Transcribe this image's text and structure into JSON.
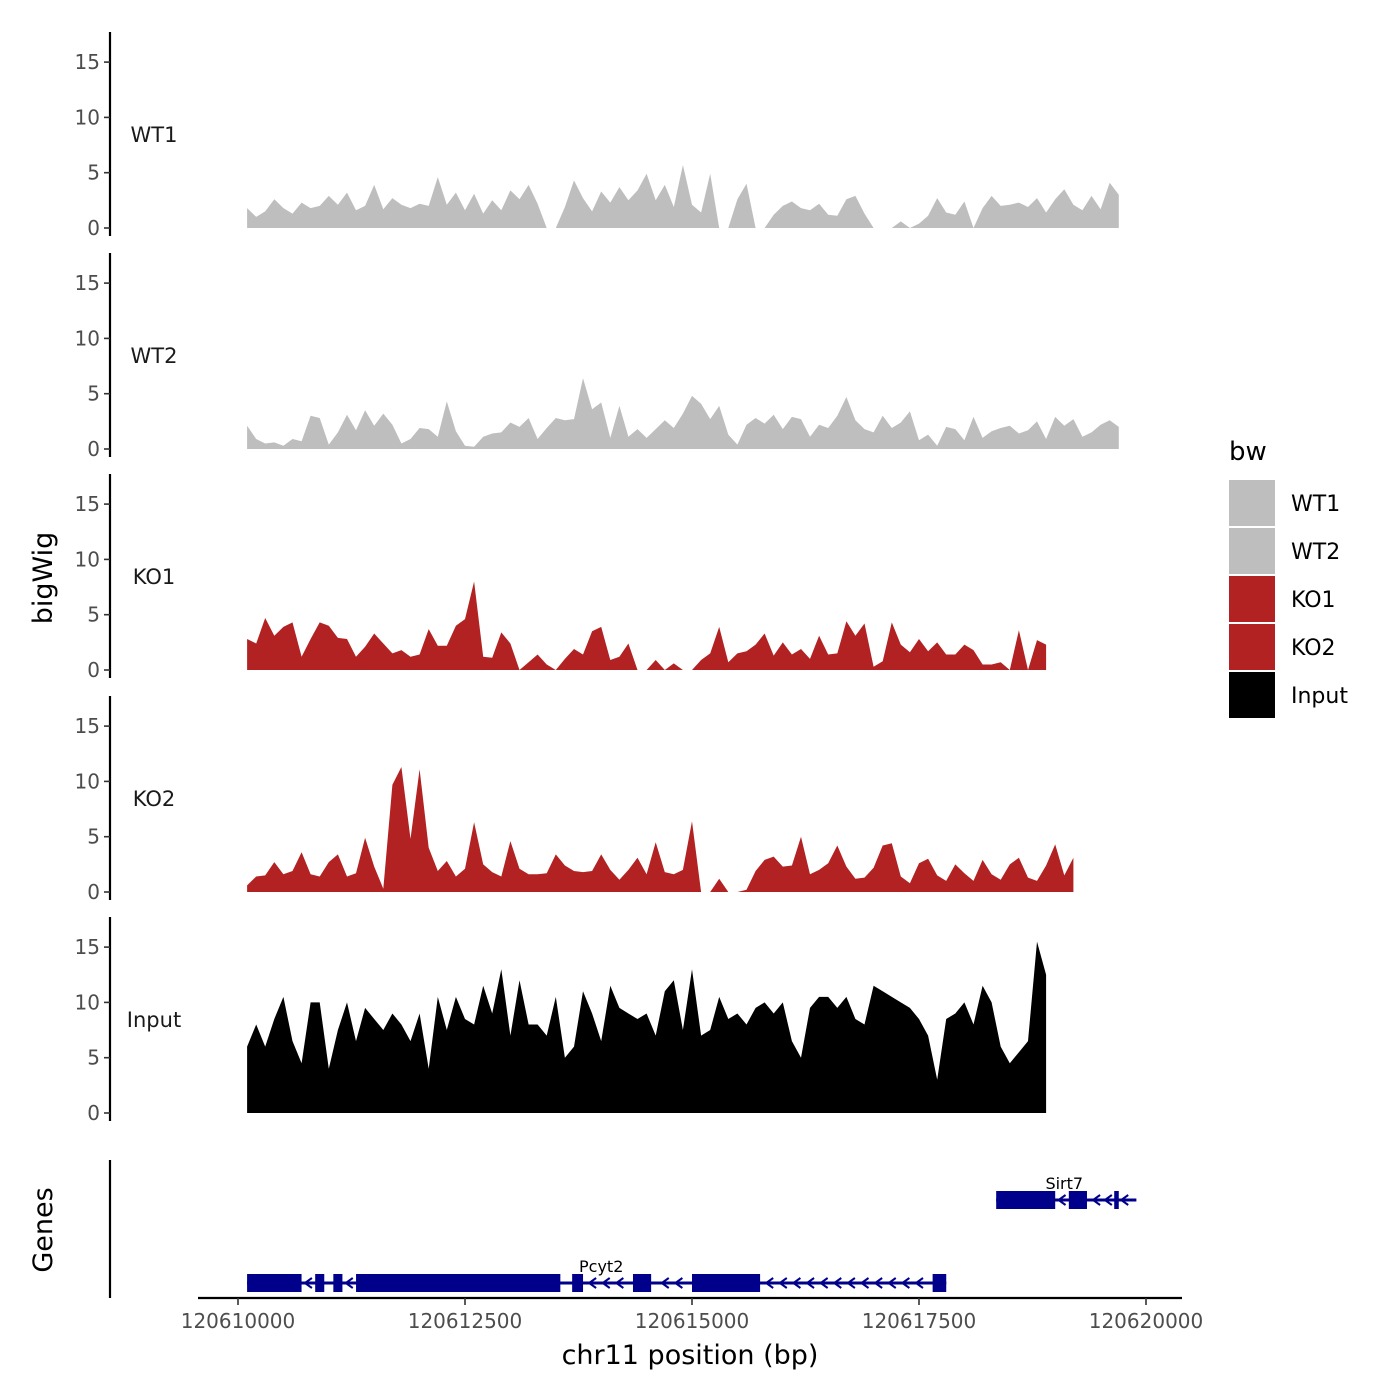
{
  "chart_data": {
    "type": "area",
    "title": "",
    "xlabel": "chr11 position (bp)",
    "ylabel": "bigWig",
    "genes_label": "Genes",
    "xlim": [
      120609600,
      120620800
    ],
    "ylim": [
      0,
      18
    ],
    "x_ticks": [
      {
        "value": 120610000,
        "label": "120610000"
      },
      {
        "value": 120612500,
        "label": "120612500"
      },
      {
        "value": 120615000,
        "label": "120615000"
      },
      {
        "value": 120617500,
        "label": "120617500"
      },
      {
        "value": 120620000,
        "label": "120620000"
      }
    ],
    "y_ticks": [
      {
        "value": 0,
        "label": "0"
      },
      {
        "value": 5,
        "label": "5"
      },
      {
        "value": 10,
        "label": "10"
      },
      {
        "value": 15,
        "label": "15"
      }
    ],
    "x_start": 120610100,
    "x_step": 100,
    "legend": {
      "title": "bw",
      "entries": [
        {
          "label": "WT1",
          "color": "#bebebe"
        },
        {
          "label": "WT2",
          "color": "#bebebe"
        },
        {
          "label": "KO1",
          "color": "#b22222"
        },
        {
          "label": "KO2",
          "color": "#b22222"
        },
        {
          "label": "Input",
          "color": "#000000"
        }
      ]
    },
    "series": [
      {
        "name": "WT1",
        "color": "#bebebe",
        "values": [
          1.8,
          1.0,
          1.5,
          2.6,
          1.8,
          1.3,
          2.3,
          1.8,
          2.0,
          2.9,
          2.1,
          3.2,
          1.6,
          2.0,
          3.9,
          1.7,
          2.7,
          2.1,
          1.8,
          2.2,
          2.0,
          4.6,
          2.1,
          3.2,
          1.6,
          3.1,
          1.3,
          2.5,
          1.6,
          3.4,
          2.6,
          3.9,
          2.2,
          0.0,
          0.0,
          1.9,
          4.3,
          2.7,
          1.5,
          3.3,
          2.3,
          3.7,
          2.5,
          3.4,
          4.9,
          2.5,
          3.9,
          1.9,
          5.7,
          2.1,
          1.4,
          4.9,
          0.0,
          0.0,
          2.6,
          4.0,
          0.0,
          0.0,
          1.2,
          2.0,
          2.4,
          1.8,
          1.6,
          2.2,
          1.2,
          1.1,
          2.6,
          2.9,
          1.3,
          0.0,
          0.0,
          0.0,
          0.6,
          0.0,
          0.4,
          1.1,
          2.7,
          1.4,
          1.2,
          2.4,
          0.0,
          1.8,
          2.9,
          2.0,
          2.1,
          2.3,
          1.9,
          2.7,
          1.4,
          2.6,
          3.5,
          2.1,
          1.6,
          2.9,
          1.7,
          4.1,
          3.0
        ]
      },
      {
        "name": "WT2",
        "color": "#bebebe",
        "values": [
          2.1,
          0.9,
          0.5,
          0.6,
          0.3,
          0.9,
          0.7,
          3.0,
          2.8,
          0.4,
          1.5,
          3.1,
          1.7,
          3.5,
          2.1,
          3.2,
          2.2,
          0.5,
          0.9,
          1.9,
          1.8,
          1.1,
          4.3,
          1.6,
          0.3,
          0.2,
          1.1,
          1.4,
          1.5,
          2.4,
          2.0,
          2.8,
          0.9,
          1.9,
          2.8,
          2.6,
          2.7,
          6.4,
          3.6,
          4.2,
          1.0,
          3.9,
          1.1,
          1.8,
          1.0,
          1.8,
          2.6,
          1.9,
          3.2,
          4.8,
          4.1,
          2.7,
          3.9,
          1.3,
          0.4,
          2.2,
          2.8,
          2.3,
          3.1,
          1.8,
          2.9,
          2.7,
          1.1,
          2.2,
          1.9,
          3.0,
          4.7,
          2.6,
          1.8,
          1.5,
          3.0,
          1.9,
          2.4,
          3.4,
          0.8,
          1.3,
          0.3,
          2.0,
          1.8,
          0.8,
          2.9,
          1.0,
          1.6,
          1.9,
          2.1,
          1.4,
          1.7,
          2.5,
          0.9,
          2.9,
          2.1,
          2.7,
          1.1,
          1.5,
          2.2,
          2.6,
          2.0
        ]
      },
      {
        "name": "KO1",
        "color": "#b22222",
        "values": [
          2.8,
          2.4,
          4.7,
          3.1,
          3.9,
          4.3,
          1.2,
          2.8,
          4.3,
          4.0,
          2.9,
          2.8,
          1.2,
          2.1,
          3.3,
          2.4,
          1.5,
          1.8,
          1.2,
          1.4,
          3.7,
          2.2,
          2.2,
          4.0,
          4.6,
          8.0,
          1.2,
          1.1,
          3.4,
          2.4,
          0.0,
          0.7,
          1.4,
          0.5,
          0.0,
          1.0,
          1.9,
          1.4,
          3.5,
          3.9,
          0.9,
          1.2,
          2.4,
          0.0,
          0.0,
          0.9,
          0.0,
          0.6,
          0.0,
          0.0,
          0.9,
          1.5,
          3.9,
          0.7,
          1.5,
          1.7,
          2.3,
          3.3,
          1.3,
          2.5,
          1.4,
          1.9,
          1.0,
          3.1,
          1.4,
          1.5,
          4.4,
          3.1,
          4.2,
          0.3,
          0.8,
          4.3,
          2.3,
          1.6,
          2.8,
          1.7,
          2.5,
          1.4,
          1.4,
          2.3,
          1.8,
          0.5,
          0.5,
          0.7,
          0.0,
          3.6,
          0.0,
          2.7,
          2.3
        ]
      },
      {
        "name": "KO2",
        "color": "#b22222",
        "values": [
          0.6,
          1.4,
          1.5,
          2.7,
          1.6,
          1.9,
          3.6,
          1.6,
          1.4,
          2.7,
          3.4,
          1.4,
          1.7,
          4.9,
          2.3,
          0.3,
          9.7,
          11.3,
          4.8,
          11.1,
          4.0,
          1.9,
          2.8,
          1.4,
          2.1,
          6.3,
          2.5,
          1.8,
          1.4,
          4.6,
          2.1,
          1.6,
          1.6,
          1.7,
          3.4,
          2.4,
          1.9,
          1.8,
          1.9,
          3.4,
          2.0,
          1.1,
          2.0,
          3.1,
          1.6,
          4.5,
          1.8,
          1.6,
          2.0,
          6.4,
          0.0,
          0.0,
          1.2,
          0.0,
          0.0,
          0.2,
          1.9,
          2.9,
          3.2,
          2.3,
          2.4,
          5.0,
          1.6,
          2.0,
          2.6,
          4.2,
          2.3,
          1.2,
          1.3,
          2.2,
          4.2,
          4.4,
          1.4,
          0.8,
          2.6,
          3.0,
          1.5,
          1.0,
          2.5,
          1.7,
          1.0,
          2.9,
          1.6,
          1.1,
          2.5,
          3.1,
          1.3,
          1.0,
          2.4,
          4.3,
          1.5,
          3.1
        ]
      },
      {
        "name": "Input",
        "color": "#000000",
        "values": [
          6.0,
          8.0,
          6.0,
          8.5,
          10.5,
          6.5,
          4.5,
          10.0,
          10.0,
          4.0,
          7.5,
          10.0,
          6.5,
          9.5,
          8.5,
          7.5,
          9.0,
          8.0,
          6.5,
          9.0,
          4.0,
          10.5,
          7.5,
          10.5,
          8.5,
          8.0,
          11.5,
          9.0,
          13.0,
          7.0,
          12.0,
          8.0,
          8.0,
          7.0,
          10.5,
          5.0,
          6.0,
          11.0,
          9.0,
          6.5,
          11.5,
          9.5,
          9.0,
          8.5,
          9.0,
          7.0,
          11.0,
          12.0,
          7.5,
          13.0,
          7.0,
          7.5,
          10.5,
          8.5,
          9.0,
          8.0,
          9.5,
          10.0,
          9.0,
          10.0,
          6.5,
          5.0,
          9.5,
          10.5,
          10.5,
          9.5,
          10.5,
          8.5,
          8.0,
          11.5,
          11.0,
          10.5,
          10.0,
          9.5,
          8.5,
          7.0,
          3.0,
          8.5,
          9.0,
          10.0,
          8.0,
          11.5,
          10.0,
          6.0,
          4.5,
          5.5,
          6.5,
          15.5,
          12.5
        ]
      }
    ],
    "genes": [
      {
        "name": "Pcyt2",
        "strand": "-",
        "start": 120610100,
        "end": 120617800,
        "label_pos": 120614000,
        "exons": [
          [
            120610100,
            120610700
          ],
          [
            120610850,
            120610950
          ],
          [
            120611050,
            120611150
          ],
          [
            120611300,
            120613550
          ],
          [
            120613680,
            120613800
          ],
          [
            120614350,
            120614550
          ],
          [
            120615000,
            120615750
          ],
          [
            120617650,
            120617800
          ]
        ],
        "arrows": [
          120610770,
          120611220,
          120613900,
          120614050,
          120614200,
          120614700,
          120614850,
          120615850,
          120616000,
          120616150,
          120616300,
          120616450,
          120616600,
          120616750,
          120616900,
          120617050,
          120617200,
          120617350,
          120617500
        ]
      },
      {
        "name": "Sirt7",
        "strand": "-",
        "start": 120618350,
        "end": 120619850,
        "label_pos": 120619100,
        "exons": [
          [
            120618350,
            120619000
          ],
          [
            120619150,
            120619350
          ],
          [
            120619650,
            120619700
          ]
        ],
        "arrows": [
          120619070,
          120619450,
          120619580,
          120619760
        ]
      }
    ]
  }
}
